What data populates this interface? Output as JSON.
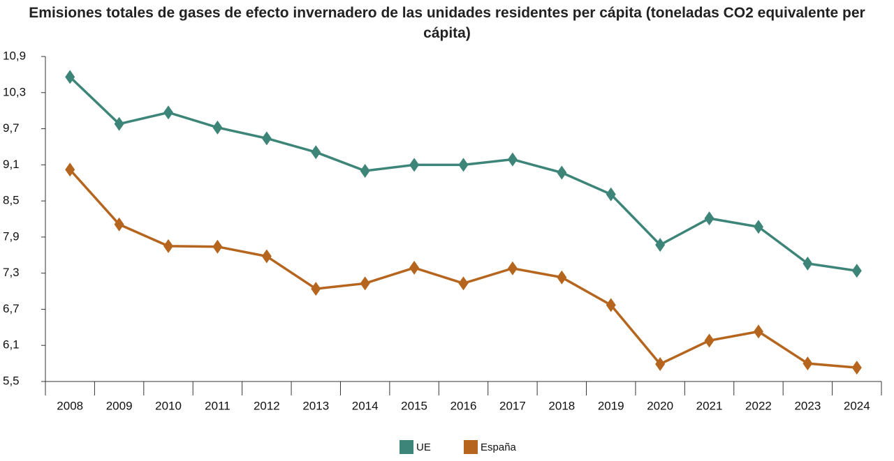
{
  "chart_data": {
    "type": "line",
    "title": "Emisiones totales de gases de efecto invernadero de las unidades residentes per cápita (toneladas CO2 equivalente per cápita)",
    "categories": [
      "2008",
      "2009",
      "2010",
      "2011",
      "2012",
      "2013",
      "2014",
      "2015",
      "2016",
      "2017",
      "2018",
      "2019",
      "2020",
      "2021",
      "2022",
      "2023",
      "2024"
    ],
    "series": [
      {
        "name": "UE",
        "color": "#3d8578",
        "values": [
          10.56,
          9.78,
          9.97,
          9.72,
          9.54,
          9.31,
          9.0,
          9.1,
          9.1,
          9.19,
          8.97,
          8.61,
          7.77,
          8.21,
          8.07,
          7.46,
          7.34
        ]
      },
      {
        "name": "España",
        "color": "#b5651d",
        "values": [
          9.02,
          8.11,
          7.75,
          7.74,
          7.58,
          7.04,
          7.13,
          7.39,
          7.13,
          7.38,
          7.23,
          6.77,
          5.79,
          6.18,
          6.33,
          5.8,
          5.73
        ]
      }
    ],
    "ylim": [
      5.5,
      10.9
    ],
    "yticks": [
      {
        "value": 5.5,
        "label": "5,5"
      },
      {
        "value": 6.1,
        "label": "6,1"
      },
      {
        "value": 6.7,
        "label": "6,7"
      },
      {
        "value": 7.3,
        "label": "7,3"
      },
      {
        "value": 7.9,
        "label": "7,9"
      },
      {
        "value": 8.5,
        "label": "8,5"
      },
      {
        "value": 9.1,
        "label": "9,1"
      },
      {
        "value": 9.7,
        "label": "9,7"
      },
      {
        "value": 10.3,
        "label": "10,3"
      },
      {
        "value": 10.9,
        "label": "10,9"
      }
    ],
    "legend": "bottom"
  }
}
